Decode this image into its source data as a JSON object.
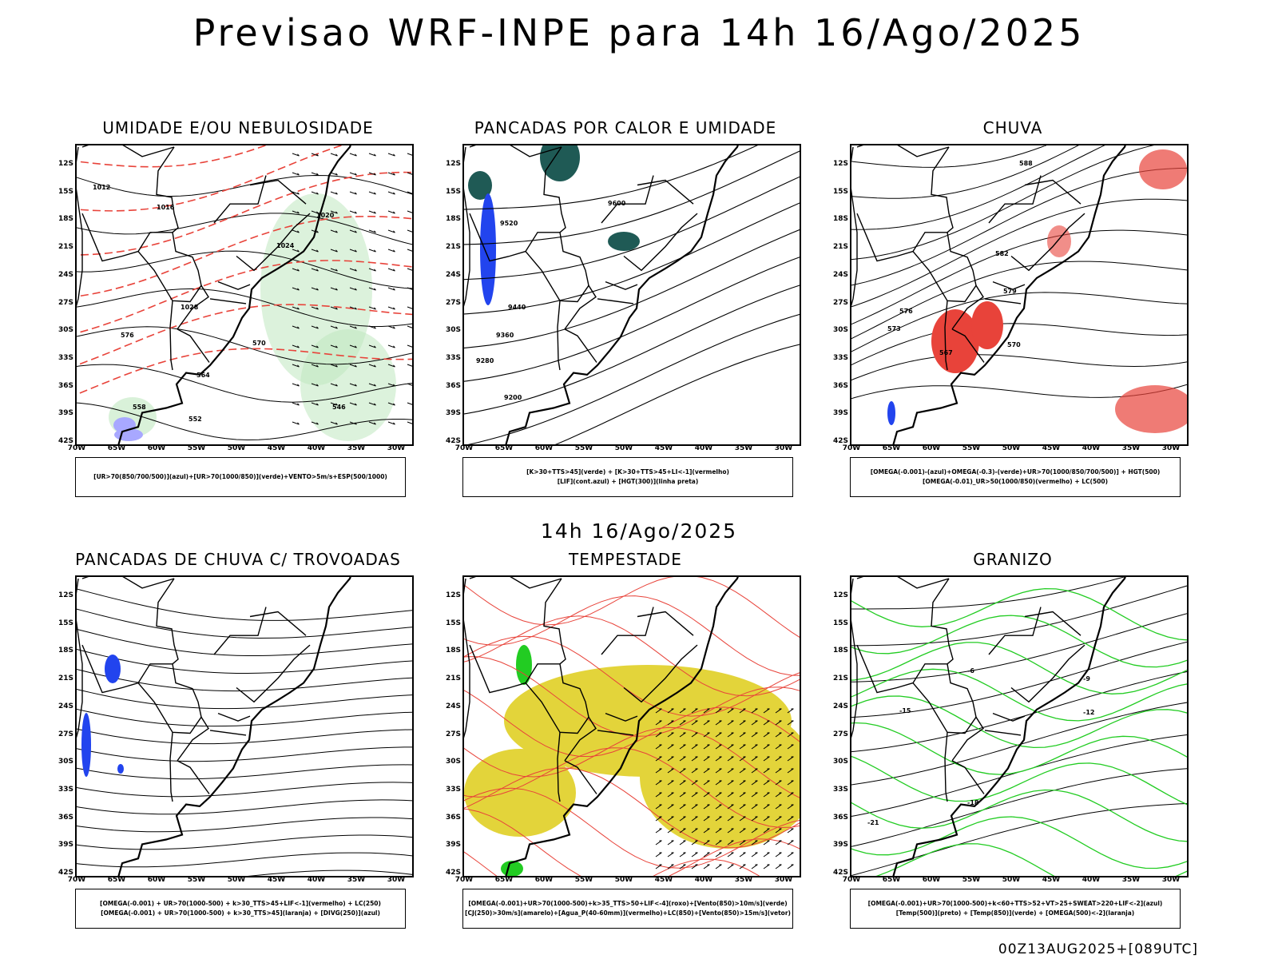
{
  "header": {
    "title": "Previsao WRF-INPE  para 14h 16/Ago/2025"
  },
  "mid_label": "14h 16/Ago/2025",
  "footer": "00Z13AUG2025+[089UTC]",
  "axes": {
    "lat_labels": [
      "12S",
      "15S",
      "18S",
      "21S",
      "24S",
      "27S",
      "30S",
      "33S",
      "36S",
      "39S",
      "42S"
    ],
    "lon_labels": [
      "70W",
      "65W",
      "60W",
      "55W",
      "50W",
      "45W",
      "40W",
      "35W",
      "30W"
    ]
  },
  "colors": {
    "red": "#e8433a",
    "green": "#22cc22",
    "blue": "#2244ee",
    "yellow": "#e3d43a",
    "teal": "#1f5a55",
    "black": "#000000"
  },
  "panels": [
    {
      "id": "umidade",
      "title": "UMIDADE E/OU NEBULOSIDADE",
      "legend": [
        "[UR>70(850/700/500)](azul)+[UR>70(1000/850)](verde)+VENTO>5m/s+ESP(500/1000)"
      ],
      "contour_labels": [
        "1012",
        "1016",
        "1020",
        "1024",
        "1028",
        "576",
        "570",
        "564",
        "558",
        "552",
        "546"
      ]
    },
    {
      "id": "pancadas-calor",
      "title": "PANCADAS POR CALOR E UMIDADE",
      "legend": [
        "[K>30+TTS>45](verde) + [K>30+TTS>45+LI<-1](vermelho)",
        "[LIF](cont.azul) + [HGT(300)](linha preta)"
      ],
      "contour_labels": [
        "9600",
        "9520",
        "9440",
        "9360",
        "9280",
        "9200"
      ]
    },
    {
      "id": "chuva",
      "title": "CHUVA",
      "legend": [
        "[OMEGA(-0.001)-(azul)+OMEGA(-0.3)-(verde)+UR>70(1000/850/700/500)] + HGT(500)",
        "[OMEGA(-0.01)_UR>50(1000/850)(vermelho) + LC(500)"
      ],
      "contour_labels": [
        "588",
        "582",
        "579",
        "576",
        "573",
        "570",
        "567"
      ]
    },
    {
      "id": "trovoadas",
      "title": "PANCADAS DE CHUVA C/ TROVOADAS",
      "legend": [
        "[OMEGA(-0.001) + UR>70(1000-500) + k>30_TTS>45+LIF<-1](vermelho) + LC(250)",
        "[OMEGA(-0.001) + UR>70(1000-500) + k>30_TTS>45](laranja) + [DIVG(250)](azul)"
      ],
      "contour_labels": []
    },
    {
      "id": "tempestade",
      "title": "TEMPESTADE",
      "legend": [
        "[OMEGA(-0.001)+UR>70(1000-500)+k>35_TTS>50+LIF<-4](roxo)+[Vento(850)>10m/s](verde)",
        "[CJ(250)>30m/s](amarelo)+[Agua_P(40-60mm)](vermelho)+LC(850)+[Vento(850)>15m/s](vetor)"
      ],
      "contour_labels": []
    },
    {
      "id": "granizo",
      "title": "GRANIZO",
      "legend": [
        "[OMEGA(-0.001)+UR>70(1000-500)+k<60+TTS>52+VT>25+SWEAT>220+LIF<-2](azul)",
        "[Temp(500)](preto) + [Temp(850)](verde) + [OMEGA(500)<-2](laranja)"
      ],
      "contour_labels": [
        "-6",
        "-9",
        "-12",
        "-15",
        "-18",
        "-21"
      ]
    }
  ]
}
